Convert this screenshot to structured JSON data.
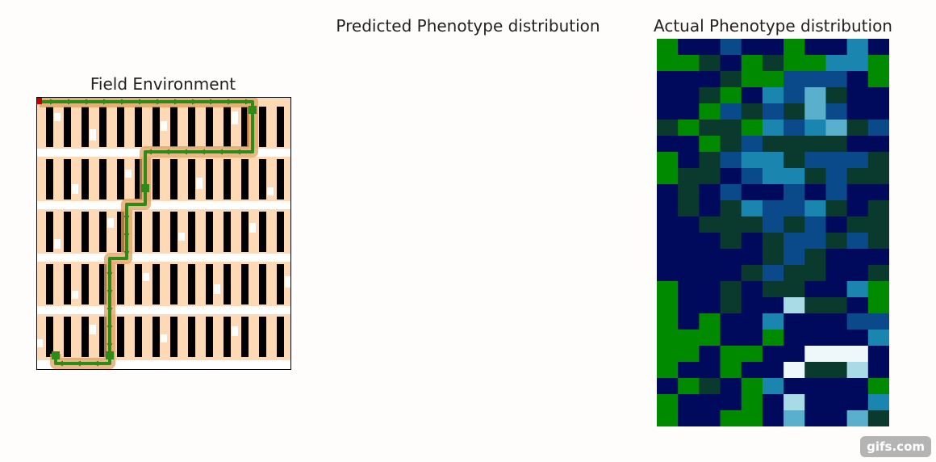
{
  "field": {
    "title": "Field Environment"
  },
  "predicted": {
    "title": "Predicted Phenotype distribution"
  },
  "actual": {
    "title": "Actual Phenotype distribution"
  },
  "watermark": "gifs.com",
  "colors": {
    "background": "#fefdfb",
    "plot": "#000000",
    "soil": "#fdd9b5",
    "path": "#2e8b1a",
    "path_glow": "#e0a060",
    "start_marker": "#c00000",
    "heat_low": "#008a00",
    "heat_mid": "#000a5c",
    "heat_high": "#eef8fb"
  },
  "icons": {
    "waypoint": "square-marker-icon",
    "step": "arrow-head-icon"
  },
  "chart_data": {
    "type": "heatmap",
    "rows": 24,
    "cols": 11,
    "values": [
      [
        1,
        2,
        2,
        4,
        2,
        2,
        1,
        2,
        2,
        5,
        2
      ],
      [
        1,
        1,
        3,
        2,
        1,
        3,
        1,
        1,
        5,
        5,
        1
      ],
      [
        2,
        2,
        2,
        3,
        1,
        1,
        4,
        4,
        4,
        2,
        1
      ],
      [
        2,
        2,
        3,
        1,
        2,
        5,
        4,
        6,
        3,
        2,
        2
      ],
      [
        2,
        2,
        1,
        4,
        3,
        4,
        3,
        6,
        4,
        2,
        2
      ],
      [
        3,
        1,
        3,
        3,
        1,
        5,
        4,
        5,
        6,
        3,
        4
      ],
      [
        2,
        2,
        1,
        3,
        4,
        3,
        3,
        3,
        3,
        2,
        2
      ],
      [
        1,
        2,
        3,
        4,
        5,
        5,
        3,
        4,
        4,
        4,
        3
      ],
      [
        1,
        3,
        3,
        2,
        4,
        5,
        5,
        3,
        4,
        3,
        3
      ],
      [
        2,
        3,
        2,
        4,
        2,
        2,
        4,
        2,
        4,
        2,
        2
      ],
      [
        2,
        3,
        2,
        3,
        5,
        4,
        4,
        5,
        3,
        2,
        3
      ],
      [
        2,
        2,
        3,
        3,
        3,
        4,
        3,
        4,
        2,
        3,
        3
      ],
      [
        2,
        2,
        2,
        3,
        2,
        3,
        4,
        4,
        3,
        4,
        3
      ],
      [
        2,
        2,
        2,
        2,
        2,
        3,
        4,
        3,
        2,
        2,
        2
      ],
      [
        2,
        2,
        2,
        2,
        3,
        4,
        3,
        3,
        2,
        2,
        3
      ],
      [
        1,
        2,
        2,
        3,
        2,
        3,
        3,
        2,
        2,
        5,
        1
      ],
      [
        1,
        2,
        2,
        3,
        2,
        2,
        7,
        3,
        3,
        2,
        1
      ],
      [
        1,
        2,
        1,
        2,
        2,
        5,
        2,
        2,
        2,
        4,
        4
      ],
      [
        1,
        1,
        1,
        2,
        2,
        1,
        2,
        2,
        2,
        2,
        5
      ],
      [
        1,
        1,
        2,
        1,
        1,
        2,
        2,
        8,
        8,
        8,
        2
      ],
      [
        1,
        2,
        2,
        1,
        2,
        2,
        8,
        3,
        3,
        7,
        2
      ],
      [
        2,
        1,
        3,
        2,
        1,
        5,
        2,
        2,
        2,
        2,
        1
      ],
      [
        1,
        2,
        2,
        2,
        1,
        2,
        7,
        2,
        2,
        2,
        5
      ],
      [
        1,
        2,
        2,
        1,
        1,
        2,
        6,
        2,
        2,
        6,
        3
      ]
    ]
  }
}
